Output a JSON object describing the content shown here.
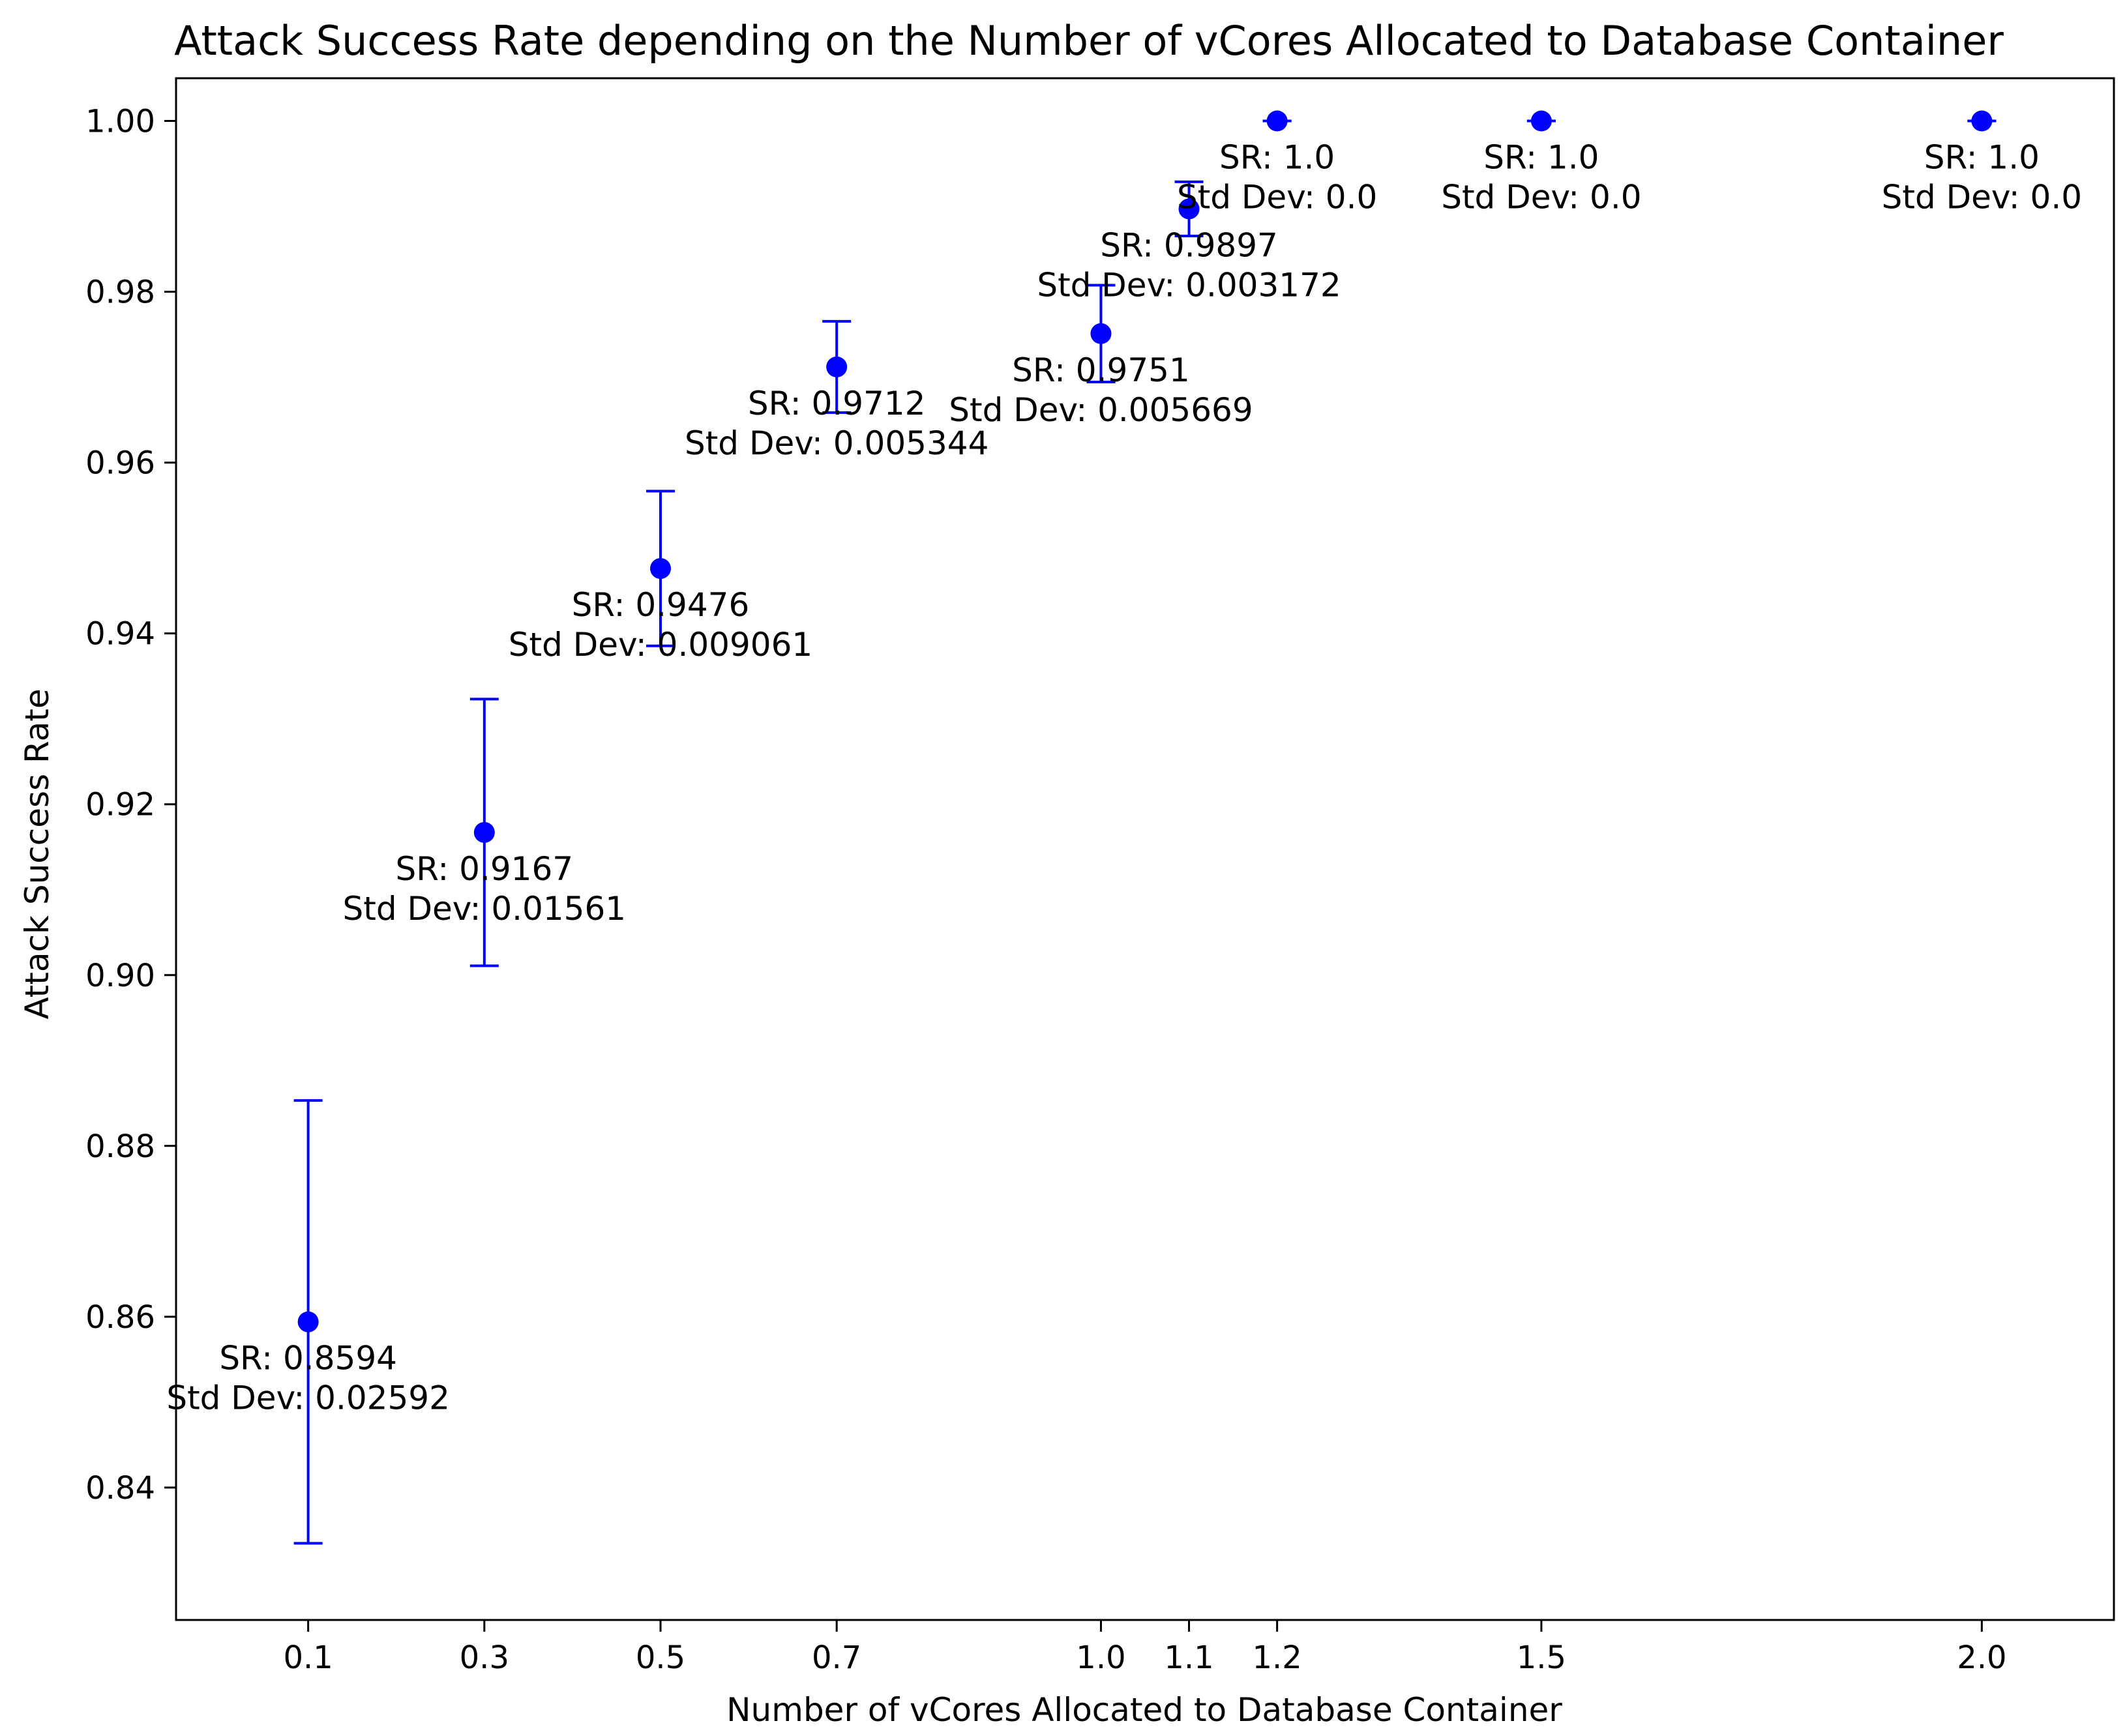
{
  "chart_data": {
    "type": "scatter",
    "title": "Attack Success Rate depending on the Number of vCores Allocated to Database Container",
    "xlabel": "Number of vCores Allocated to Database Container",
    "ylabel": "Attack Success Rate",
    "xlim": [
      -0.05,
      2.15
    ],
    "ylim": [
      0.8245,
      1.005
    ],
    "x_ticks": [
      0.1,
      0.3,
      0.5,
      0.7,
      1.0,
      1.1,
      1.2,
      1.5,
      2.0
    ],
    "x_tick_labels": [
      "0.1",
      "0.3",
      "0.5",
      "0.7",
      "1.0",
      "1.1",
      "1.2",
      "1.5",
      "2.0"
    ],
    "y_ticks": [
      0.84,
      0.86,
      0.88,
      0.9,
      0.92,
      0.94,
      0.96,
      0.98,
      1.0
    ],
    "y_tick_labels": [
      "0.84",
      "0.86",
      "0.88",
      "0.90",
      "0.92",
      "0.94",
      "0.96",
      "0.98",
      "1.00"
    ],
    "grid": false,
    "marker_color": "#0000ff",
    "series": [
      {
        "x": [
          0.1,
          0.3,
          0.5,
          0.7,
          1.0,
          1.1,
          1.2,
          1.5,
          2.0
        ],
        "y": [
          0.8594,
          0.9167,
          0.9476,
          0.9712,
          0.9751,
          0.9897,
          1.0,
          1.0,
          1.0
        ],
        "yerr": [
          0.02592,
          0.01561,
          0.009061,
          0.005344,
          0.005669,
          0.003172,
          0.0,
          0.0,
          0.0
        ]
      }
    ],
    "annotations": [
      [
        "SR: 0.8594",
        "Std Dev: 0.02592"
      ],
      [
        "SR: 0.9167",
        "Std Dev: 0.01561"
      ],
      [
        "SR: 0.9476",
        "Std Dev: 0.009061"
      ],
      [
        "SR: 0.9712",
        "Std Dev: 0.005344"
      ],
      [
        "SR: 0.9751",
        "Std Dev: 0.005669"
      ],
      [
        "SR: 0.9897",
        "Std Dev: 0.003172"
      ],
      [
        "SR: 1.0",
        "Std Dev: 0.0"
      ],
      [
        "SR: 1.0",
        "Std Dev: 0.0"
      ],
      [
        "SR: 1.0",
        "Std Dev: 0.0"
      ]
    ]
  }
}
